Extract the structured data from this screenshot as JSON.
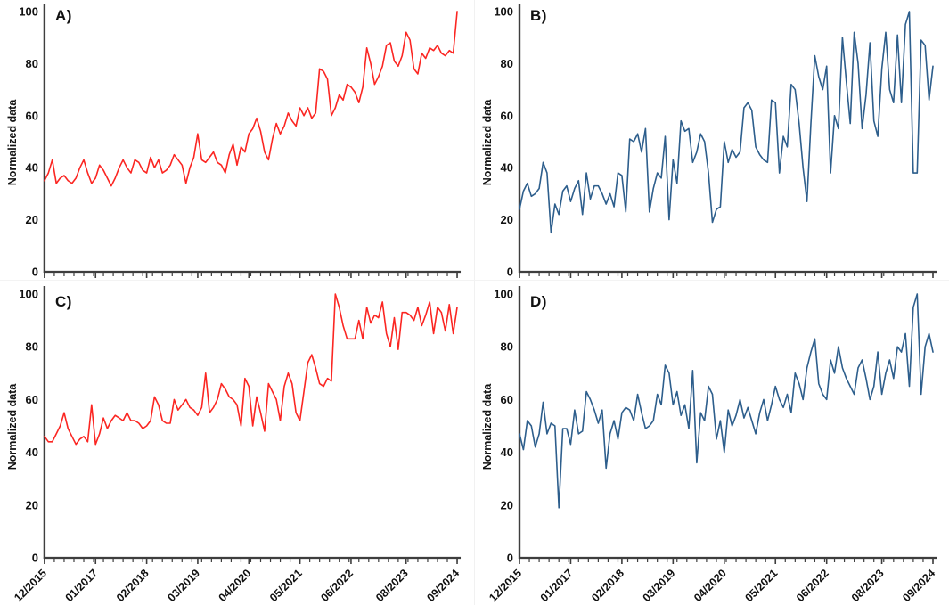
{
  "figure": {
    "background": "#ffffff",
    "axis_color": "#3e3e3e",
    "text_color": "#111111",
    "red_accent": "#fb2622",
    "blue_accent": "#2d5e8c"
  },
  "x_axis": {
    "tick_labels": [
      "12/2015",
      "01/2017",
      "02/2018",
      "03/2019",
      "04/2020",
      "05/2021",
      "06/2022",
      "08/2023",
      "09/2024"
    ],
    "tick_positions": [
      0,
      13,
      26,
      39,
      52,
      65,
      78,
      92,
      105
    ],
    "n_points": 106,
    "first_label": "12/2015",
    "last_label": "09/2024"
  },
  "chart_data": [
    {
      "panel_label": "A)",
      "type": "line",
      "series_color": "#fb2622",
      "ylabel": "Normalized data",
      "ylim": [
        0,
        100
      ],
      "yticks": [
        0,
        20,
        40,
        60,
        80,
        100
      ],
      "show_x_labels": false,
      "grid": "off",
      "legend": "none",
      "values": [
        35,
        38,
        43,
        34,
        36,
        37,
        35,
        34,
        36,
        40,
        43,
        38,
        34,
        36,
        41,
        39,
        36,
        33,
        36,
        40,
        43,
        40,
        38,
        43,
        42,
        39,
        38,
        44,
        40,
        43,
        38,
        39,
        41,
        45,
        43,
        41,
        34,
        40,
        44,
        53,
        43,
        42,
        44,
        46,
        42,
        41,
        38,
        45,
        49,
        41,
        48,
        46,
        53,
        55,
        59,
        54,
        46,
        43,
        51,
        57,
        53,
        56,
        61,
        58,
        56,
        63,
        60,
        63,
        59,
        61,
        78,
        77,
        74,
        60,
        63,
        68,
        66,
        72,
        71,
        69,
        65,
        71,
        86,
        80,
        72,
        75,
        79,
        87,
        88,
        81,
        79,
        83,
        92,
        89,
        78,
        76,
        84,
        82,
        86,
        85,
        87,
        84,
        83,
        85,
        84,
        100
      ]
    },
    {
      "panel_label": "B)",
      "type": "line",
      "series_color": "#2d5e8c",
      "ylabel": "Normalized data",
      "ylim": [
        0,
        100
      ],
      "yticks": [
        0,
        20,
        40,
        60,
        80,
        100
      ],
      "show_x_labels": false,
      "grid": "off",
      "legend": "none",
      "values": [
        24,
        31,
        34,
        29,
        30,
        32,
        42,
        38,
        15,
        26,
        22,
        31,
        33,
        27,
        32,
        35,
        22,
        38,
        28,
        33,
        33,
        30,
        26,
        30,
        25,
        38,
        37,
        23,
        51,
        50,
        53,
        46,
        55,
        23,
        32,
        38,
        36,
        52,
        20,
        43,
        34,
        58,
        54,
        55,
        42,
        46,
        53,
        50,
        38,
        19,
        24,
        25,
        50,
        42,
        47,
        44,
        46,
        63,
        65,
        62,
        48,
        45,
        43,
        42,
        66,
        65,
        38,
        52,
        48,
        72,
        70,
        57,
        40,
        27,
        57,
        83,
        75,
        70,
        79,
        38,
        60,
        55,
        90,
        73,
        57,
        92,
        80,
        55,
        68,
        88,
        58,
        52,
        78,
        92,
        70,
        65,
        91,
        65,
        95,
        100,
        38,
        38,
        89,
        87,
        66,
        79
      ]
    },
    {
      "panel_label": "C)",
      "type": "line",
      "series_color": "#fb2622",
      "ylabel": "Normalized data",
      "ylim": [
        0,
        100
      ],
      "yticks": [
        0,
        20,
        40,
        60,
        80,
        100
      ],
      "show_x_labels": true,
      "grid": "off",
      "legend": "none",
      "values": [
        46,
        44,
        44,
        47,
        50,
        55,
        49,
        46,
        43,
        45,
        46,
        44,
        58,
        43,
        47,
        53,
        49,
        52,
        54,
        53,
        52,
        55,
        52,
        52,
        51,
        49,
        50,
        52,
        61,
        58,
        52,
        51,
        51,
        60,
        56,
        58,
        60,
        57,
        56,
        54,
        57,
        70,
        55,
        57,
        60,
        66,
        64,
        61,
        60,
        58,
        50,
        68,
        65,
        50,
        61,
        55,
        48,
        66,
        63,
        60,
        52,
        65,
        70,
        66,
        55,
        52,
        63,
        74,
        77,
        72,
        66,
        65,
        68,
        67,
        100,
        95,
        88,
        83,
        83,
        83,
        90,
        83,
        95,
        89,
        92,
        91,
        97,
        85,
        80,
        91,
        79,
        93,
        93,
        92,
        90,
        95,
        88,
        92,
        97,
        85,
        95,
        93,
        86,
        96,
        85,
        95
      ]
    },
    {
      "panel_label": "D)",
      "type": "line",
      "series_color": "#2d5e8c",
      "ylabel": "Normalized data",
      "ylim": [
        0,
        100
      ],
      "yticks": [
        0,
        20,
        40,
        60,
        80,
        100
      ],
      "show_x_labels": true,
      "grid": "off",
      "legend": "none",
      "values": [
        47,
        41,
        52,
        50,
        42,
        47,
        59,
        47,
        51,
        50,
        19,
        49,
        49,
        43,
        56,
        47,
        48,
        63,
        60,
        56,
        51,
        56,
        34,
        47,
        52,
        45,
        55,
        57,
        56,
        52,
        62,
        55,
        49,
        50,
        52,
        62,
        58,
        73,
        70,
        58,
        63,
        54,
        58,
        49,
        71,
        36,
        55,
        52,
        65,
        62,
        45,
        52,
        40,
        56,
        50,
        54,
        60,
        53,
        57,
        52,
        47,
        55,
        60,
        52,
        58,
        65,
        60,
        57,
        62,
        55,
        70,
        66,
        60,
        72,
        78,
        83,
        66,
        62,
        60,
        75,
        70,
        80,
        72,
        68,
        65,
        62,
        72,
        75,
        68,
        60,
        65,
        78,
        62,
        70,
        75,
        68,
        80,
        78,
        85,
        65,
        95,
        100,
        62,
        80,
        85,
        78
      ]
    }
  ]
}
